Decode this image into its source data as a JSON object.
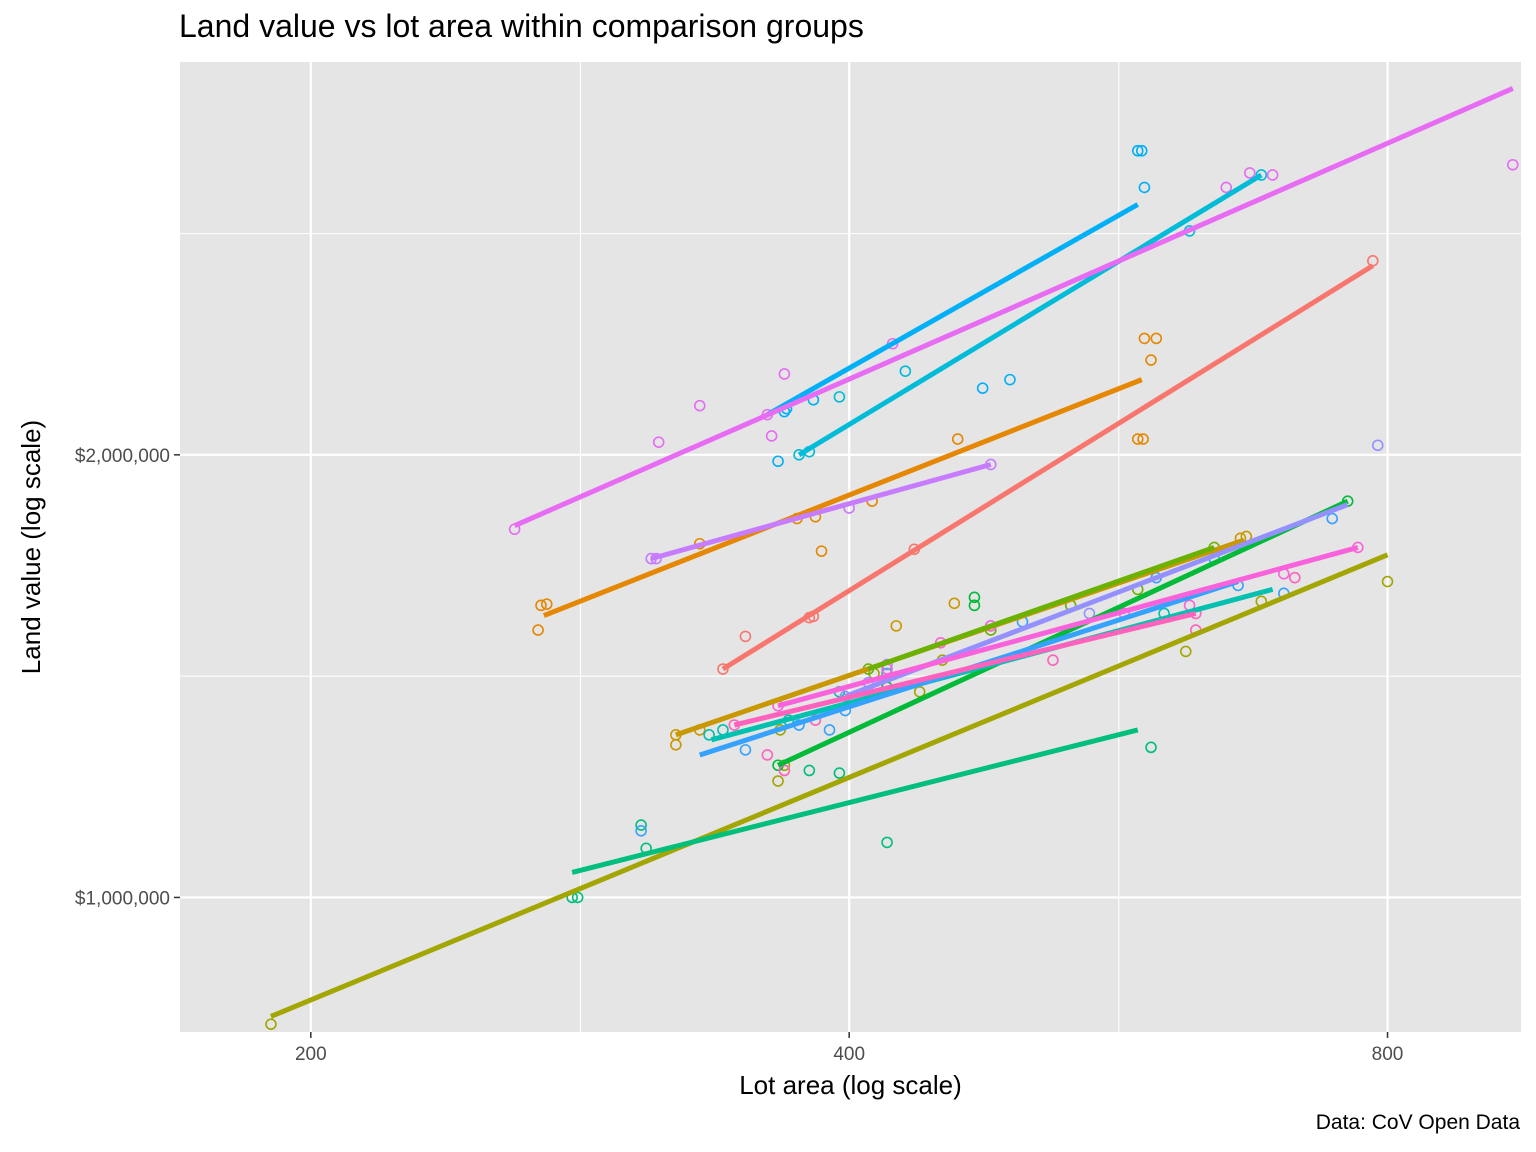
{
  "chart_data": {
    "type": "scatter",
    "title": "Land value vs lot area within comparison groups",
    "xlabel": "Lot area (log scale)",
    "ylabel": "Land value (log scale)",
    "caption": "Data: CoV Open Data",
    "x_scale": "log",
    "y_scale": "log",
    "xlim": [
      169,
      950
    ],
    "ylim": [
      810000,
      3700000
    ],
    "x_ticks": [
      200,
      400,
      800
    ],
    "x_tick_labels": [
      "200",
      "400",
      "800"
    ],
    "x_minor": [
      283,
      566
    ],
    "y_ticks": [
      1000000,
      2000000
    ],
    "y_tick_labels": [
      "$1,000,000",
      "$2,000,000"
    ],
    "y_minor": [
      1414000,
      2828000
    ],
    "grid": true,
    "legend": "none",
    "background": "#e5e5e5",
    "series": [
      {
        "color": "#f8766d",
        "line": [
          [
            340,
            1430000
          ],
          [
            785,
            2690000
          ]
        ],
        "points": [
          [
            340,
            1430000
          ],
          [
            350,
            1505000
          ],
          [
            380,
            1550000
          ],
          [
            382,
            1553000
          ],
          [
            435,
            1725000
          ],
          [
            785,
            2710000
          ]
        ]
      },
      {
        "color": "#e58700",
        "line": [
          [
            270,
            1555000
          ],
          [
            583,
            2250000
          ]
        ],
        "points": [
          [
            268,
            1520000
          ],
          [
            269,
            1580000
          ],
          [
            271,
            1583000
          ],
          [
            330,
            1740000
          ],
          [
            374,
            1810000
          ],
          [
            383,
            1815000
          ],
          [
            386,
            1720000
          ],
          [
            412,
            1860000
          ],
          [
            460,
            2050000
          ],
          [
            580,
            2050000
          ],
          [
            584,
            2050000
          ],
          [
            585,
            2400000
          ],
          [
            590,
            2320000
          ],
          [
            594,
            2400000
          ]
        ]
      },
      {
        "color": "#c99800",
        "line": [
          [
            320,
            1290000
          ],
          [
            665,
            1750000
          ]
        ],
        "points": [
          [
            320,
            1270000
          ],
          [
            320,
            1290000
          ],
          [
            330,
            1300000
          ],
          [
            425,
            1530000
          ],
          [
            458,
            1585000
          ],
          [
            662,
            1755000
          ],
          [
            667,
            1760000
          ]
        ]
      },
      {
        "color": "#a3a500",
        "line": [
          [
            190,
            830000
          ],
          [
            800,
            1710000
          ]
        ],
        "points": [
          [
            190,
            820000
          ],
          [
            365,
            1200000
          ],
          [
            366,
            1300000
          ],
          [
            368,
            1230000
          ],
          [
            413,
            1420000
          ],
          [
            438,
            1380000
          ],
          [
            451,
            1450000
          ],
          [
            617,
            1470000
          ],
          [
            680,
            1590000
          ],
          [
            800,
            1640000
          ]
        ]
      },
      {
        "color": "#6bb100",
        "line": [
          [
            410,
            1430000
          ],
          [
            640,
            1730000
          ]
        ],
        "points": [
          [
            410,
            1430000
          ],
          [
            480,
            1520000
          ],
          [
            532,
            1580000
          ],
          [
            580,
            1620000
          ],
          [
            640,
            1730000
          ]
        ]
      },
      {
        "color": "#00ba38",
        "line": [
          [
            365,
            1230000
          ],
          [
            760,
            1860000
          ]
        ],
        "points": [
          [
            365,
            1230000
          ],
          [
            420,
            1390000
          ],
          [
            470,
            1600000
          ],
          [
            470,
            1580000
          ],
          [
            760,
            1860000
          ]
        ]
      },
      {
        "color": "#00bf7d",
        "line": [
          [
            280,
            1040000
          ],
          [
            580,
            1300000
          ]
        ],
        "points": [
          [
            280,
            1000000
          ],
          [
            282,
            1000000
          ],
          [
            306,
            1120000
          ],
          [
            308,
            1080000
          ],
          [
            380,
            1220000
          ],
          [
            395,
            1215000
          ],
          [
            420,
            1090000
          ],
          [
            590,
            1265000
          ]
        ]
      },
      {
        "color": "#00c0af",
        "line": [
          [
            335,
            1280000
          ],
          [
            690,
            1620000
          ]
        ],
        "points": [
          [
            334,
            1290000
          ],
          [
            340,
            1300000
          ],
          [
            370,
            1320000
          ],
          [
            395,
            1380000
          ],
          [
            420,
            1420000
          ],
          [
            600,
            1560000
          ]
        ]
      },
      {
        "color": "#00bcd8",
        "line": [
          [
            375,
            2000000
          ],
          [
            680,
            3100000
          ]
        ],
        "points": [
          [
            375,
            2000000
          ],
          [
            380,
            2010000
          ],
          [
            395,
            2190000
          ],
          [
            430,
            2280000
          ],
          [
            620,
            2840000
          ],
          [
            680,
            3100000
          ]
        ]
      },
      {
        "color": "#00b0f6",
        "line": [
          [
            360,
            2130000
          ],
          [
            580,
            2960000
          ]
        ],
        "points": [
          [
            365,
            1980000
          ],
          [
            368,
            2140000
          ],
          [
            369,
            2150000
          ],
          [
            382,
            2180000
          ],
          [
            475,
            2220000
          ],
          [
            492,
            2250000
          ],
          [
            580,
            3220000
          ],
          [
            583,
            3220000
          ],
          [
            585,
            3040000
          ]
        ]
      },
      {
        "color": "#35a2ff",
        "line": [
          [
            330,
            1250000
          ],
          [
            660,
            1640000
          ]
        ],
        "points": [
          [
            306,
            1110000
          ],
          [
            350,
            1260000
          ],
          [
            375,
            1310000
          ],
          [
            390,
            1300000
          ],
          [
            398,
            1340000
          ],
          [
            410,
            1380000
          ],
          [
            500,
            1540000
          ],
          [
            594,
            1650000
          ],
          [
            640,
            1700000
          ],
          [
            660,
            1630000
          ],
          [
            700,
            1610000
          ],
          [
            745,
            1810000
          ]
        ]
      },
      {
        "color": "#9590ff",
        "line": [
          [
            398,
            1370000
          ],
          [
            760,
            1850000
          ]
        ],
        "points": [
          [
            398,
            1370000
          ],
          [
            410,
            1400000
          ],
          [
            420,
            1440000
          ],
          [
            480,
            1530000
          ],
          [
            545,
            1560000
          ],
          [
            790,
            2030000
          ]
        ]
      },
      {
        "color": "#c77cff",
        "line": [
          [
            310,
            1700000
          ],
          [
            480,
            1970000
          ]
        ],
        "points": [
          [
            310,
            1700000
          ],
          [
            312,
            1700000
          ],
          [
            400,
            1840000
          ],
          [
            480,
            1970000
          ]
        ]
      },
      {
        "color": "#e76bf3",
        "line": [
          [
            260,
            1790000
          ],
          [
            940,
            3550000
          ]
        ],
        "points": [
          [
            260,
            1780000
          ],
          [
            313,
            2040000
          ],
          [
            330,
            2160000
          ],
          [
            360,
            2130000
          ],
          [
            362,
            2060000
          ],
          [
            368,
            2270000
          ],
          [
            423,
            2380000
          ],
          [
            650,
            3040000
          ],
          [
            670,
            3110000
          ],
          [
            690,
            3100000
          ],
          [
            940,
            3150000
          ]
        ]
      },
      {
        "color": "#fa62db",
        "line": [
          [
            365,
            1350000
          ],
          [
            770,
            1730000
          ]
        ],
        "points": [
          [
            365,
            1350000
          ],
          [
            420,
            1430000
          ],
          [
            450,
            1490000
          ],
          [
            480,
            1530000
          ],
          [
            570,
            1560000
          ],
          [
            620,
            1580000
          ],
          [
            700,
            1660000
          ],
          [
            770,
            1730000
          ]
        ]
      },
      {
        "color": "#ff62bc",
        "line": [
          [
            345,
            1310000
          ],
          [
            625,
            1560000
          ]
        ],
        "points": [
          [
            345,
            1310000
          ],
          [
            360,
            1250000
          ],
          [
            368,
            1220000
          ],
          [
            383,
            1320000
          ],
          [
            520,
            1450000
          ],
          [
            625,
            1560000
          ],
          [
            625,
            1520000
          ],
          [
            710,
            1650000
          ]
        ]
      }
    ]
  }
}
